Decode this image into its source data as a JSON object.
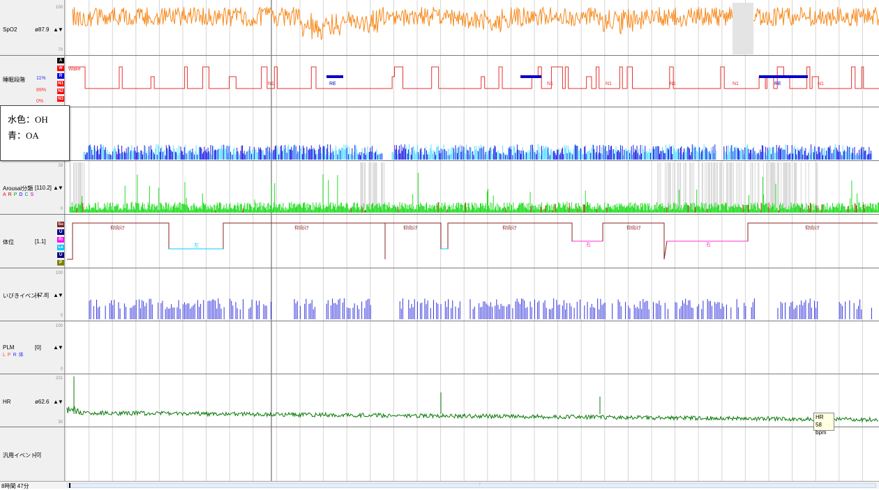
{
  "channels": {
    "spo2": {
      "label": "SpO2",
      "value": "ø87.9",
      "arrows": "▲▼",
      "scale_top": "100",
      "scale_bottom": "70"
    },
    "stage": {
      "label": "睡眠段階",
      "pct1": "11%",
      "pct2": "89%",
      "pct3": "0%",
      "stage_codes": [
        "A",
        "W",
        "R",
        "N1",
        "N2",
        "N3"
      ],
      "labels": [
        "Wake",
        "N1",
        "RE",
        "N1",
        "N1",
        "N1",
        "N1",
        "RE",
        "N1"
      ]
    },
    "resp": {
      "note_line1": "水色：OH",
      "note_line2": "青：OA"
    },
    "arousal": {
      "label": "Arousal分類",
      "value": "[110.2]",
      "arrows": "▲▼",
      "letters": [
        "A",
        "R",
        "P",
        "D",
        "C",
        "S"
      ],
      "letter_colors": [
        "#ff0000",
        "#cc0000",
        "#00aa00",
        "#0000ff",
        "#008888",
        "#aa00aa"
      ],
      "scale_top": "29",
      "scale_bottom": "0"
    },
    "position": {
      "label": "体位",
      "value": "[1.1]",
      "codes": [
        "Su",
        "U",
        "Ri",
        "Le",
        "U",
        "P"
      ],
      "code_colors": [
        "#7a1e1e",
        "#000080",
        "#ff00ff",
        "#00c8ff",
        "#000080",
        "#808000"
      ],
      "segment_labels": [
        "仰向け",
        "左",
        "仰向け",
        "仰向け",
        "仰向け",
        "右",
        "仰向け",
        "右",
        "仰向け"
      ]
    },
    "snore": {
      "label": "いびきイベント",
      "value": "[47.8]",
      "arrows": "▲▼",
      "scale_top": "100",
      "scale_bottom": "0"
    },
    "plm": {
      "label": "PLM",
      "value": "[0]",
      "arrows": "▲▼",
      "scale_top": "100",
      "scale_bottom": "0",
      "sub": [
        "L",
        "P",
        "R",
        "体"
      ]
    },
    "hr": {
      "label": "HR",
      "value": "ø62.6",
      "arrows": "▲▼",
      "scale_top": "221",
      "scale_bottom": "30",
      "tooltip_line1": "HR",
      "tooltip_line2": "58 bpm"
    },
    "generic": {
      "label": "汎用イベント",
      "value": "[0]"
    }
  },
  "footer": {
    "time_label": "8時間 47分"
  },
  "colors": {
    "spo2": "#f7891c",
    "stage": "#e83030",
    "rem_bar": "#0000cc",
    "oa": "#1a1ae6",
    "oh": "#55e0ff",
    "arousal_green": "#22dd22",
    "arousal_red": "#cc2020",
    "arousal_grey": "#d6d6d6",
    "position_line": "#8b2020",
    "left_pos": "#00d0ff",
    "right_pos": "#ff33cc",
    "snore": "#3333dd",
    "hr": "#0a7a0a",
    "grid": "#d4d4d4"
  }
}
